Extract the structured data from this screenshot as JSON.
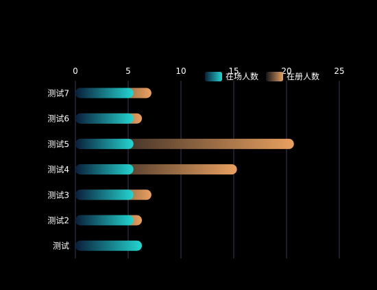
{
  "chart_data": {
    "type": "bar",
    "orientation": "horizontal",
    "categories": [
      "测试7",
      "测试6",
      "测试5",
      "测试4",
      "测试3",
      "测试2",
      "测试"
    ],
    "series": [
      {
        "name": "在场人数",
        "values": [
          5.5,
          5.5,
          5.5,
          5.5,
          5.5,
          5.5,
          6.3
        ]
      },
      {
        "name": "在册人数",
        "values": [
          7.2,
          6.3,
          20.7,
          15.3,
          7.2,
          6.3,
          0
        ]
      }
    ],
    "xlim": [
      0,
      25
    ],
    "xticks": [
      0,
      5,
      10,
      15,
      20,
      25
    ],
    "xaxis_position": "top",
    "grid": true,
    "legend_position": "top-right",
    "colors": {
      "present_start": "#0a1e3a",
      "present_end": "#22d6d0",
      "registered_start": "#141418",
      "registered_end": "#e8a060",
      "grid": "#3a3a5a",
      "text": "#ffffff"
    }
  }
}
